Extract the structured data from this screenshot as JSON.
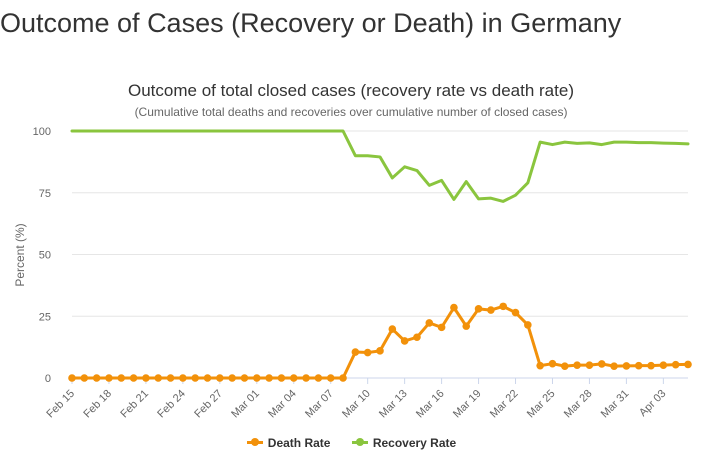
{
  "page": {
    "title": "Outcome of Cases (Recovery or Death) in Germany"
  },
  "chart_data": {
    "type": "line",
    "title": "Outcome of total closed cases (recovery rate vs death rate)",
    "subtitle": "(Cumulative total deaths and recoveries over cumulative number of closed cases)",
    "xlabel": "",
    "ylabel": "Percent (%)",
    "ylim": [
      0,
      100
    ],
    "yticks": [
      0,
      25,
      50,
      75,
      100
    ],
    "grid": true,
    "legend_position": "bottom",
    "x": [
      "Feb 15",
      "Feb 16",
      "Feb 17",
      "Feb 18",
      "Feb 19",
      "Feb 20",
      "Feb 21",
      "Feb 22",
      "Feb 23",
      "Feb 24",
      "Feb 25",
      "Feb 26",
      "Feb 27",
      "Feb 28",
      "Feb 29",
      "Mar 01",
      "Mar 02",
      "Mar 03",
      "Mar 04",
      "Mar 05",
      "Mar 06",
      "Mar 07",
      "Mar 08",
      "Mar 09",
      "Mar 10",
      "Mar 11",
      "Mar 12",
      "Mar 13",
      "Mar 14",
      "Mar 15",
      "Mar 16",
      "Mar 17",
      "Mar 18",
      "Mar 19",
      "Mar 20",
      "Mar 21",
      "Mar 22",
      "Mar 23",
      "Mar 24",
      "Mar 25",
      "Mar 26",
      "Mar 27",
      "Mar 28",
      "Mar 29",
      "Mar 30",
      "Mar 31",
      "Apr 01",
      "Apr 02",
      "Apr 03",
      "Apr 04",
      "Apr 05"
    ],
    "xtick_labels": [
      "Feb 15",
      "Feb 18",
      "Feb 21",
      "Feb 24",
      "Feb 27",
      "Mar 01",
      "Mar 04",
      "Mar 07",
      "Mar 10",
      "Mar 13",
      "Mar 16",
      "Mar 19",
      "Mar 22",
      "Mar 25",
      "Mar 28",
      "Mar 31",
      "Apr 03"
    ],
    "series": [
      {
        "name": "Death Rate",
        "color": "#f2910a",
        "values": [
          0,
          0,
          0,
          0,
          0,
          0,
          0,
          0,
          0,
          0,
          0,
          0,
          0,
          0,
          0,
          0,
          0,
          0,
          0,
          0,
          0,
          0,
          0,
          10.5,
          10.3,
          11,
          19.8,
          15,
          16.5,
          22.3,
          20.5,
          28.5,
          21,
          28,
          27.5,
          29,
          26.5,
          21.5,
          5,
          5.8,
          4.8,
          5.2,
          5.2,
          5.7,
          4.8,
          4.9,
          5,
          5,
          5.2,
          5.4,
          5.5
        ]
      },
      {
        "name": "Recovery Rate",
        "color": "#8ac53e",
        "values": [
          100,
          100,
          100,
          100,
          100,
          100,
          100,
          100,
          100,
          100,
          100,
          100,
          100,
          100,
          100,
          100,
          100,
          100,
          100,
          100,
          100,
          100,
          100,
          90,
          90,
          89.5,
          81,
          85.5,
          84,
          78,
          80,
          72.3,
          79.5,
          72.5,
          72.8,
          71.5,
          74,
          79,
          95.5,
          94.5,
          95.5,
          95,
          95.2,
          94.5,
          95.5,
          95.5,
          95.3,
          95.3,
          95.1,
          95,
          94.8
        ]
      }
    ]
  }
}
